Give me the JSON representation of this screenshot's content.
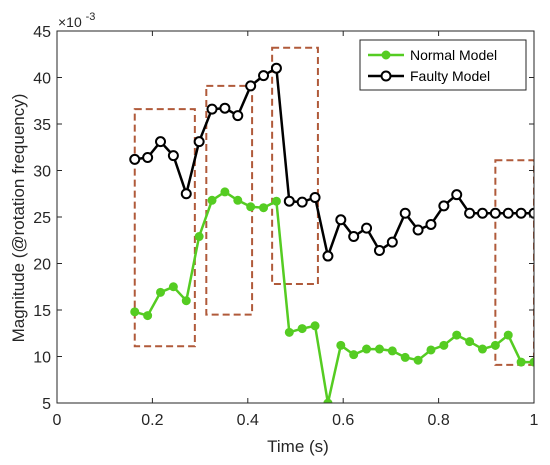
{
  "chart_data": {
    "type": "line",
    "xlabel": "Time (s)",
    "ylabel": "Magnitude (@rotation frequency)",
    "y_exponent": "×10",
    "y_exponent_power": "-3",
    "xlim": [
      0,
      1
    ],
    "ylim": [
      5,
      45
    ],
    "x_ticks": [
      0,
      0.2,
      0.4,
      0.6,
      0.8,
      1
    ],
    "x_tick_labels": [
      "0",
      "0.2",
      "0.4",
      "0.6",
      "0.8",
      "1"
    ],
    "y_ticks": [
      5,
      10,
      15,
      20,
      25,
      30,
      35,
      40,
      45
    ],
    "y_tick_labels": [
      "5",
      "10",
      "15",
      "20",
      "25",
      "30",
      "35",
      "40",
      "45"
    ],
    "grid": false,
    "legend_position": "top-right",
    "series": [
      {
        "name": "Normal Model",
        "color": "#55cc22",
        "marker": "filled-circle",
        "x": [
          0.163,
          0.19,
          0.217,
          0.244,
          0.271,
          0.298,
          0.325,
          0.352,
          0.379,
          0.406,
          0.433,
          0.46,
          0.487,
          0.514,
          0.541,
          0.568,
          0.595,
          0.622,
          0.649,
          0.676,
          0.703,
          0.73,
          0.757,
          0.784,
          0.811,
          0.838,
          0.865,
          0.892,
          0.919,
          0.946,
          0.973,
          1.0
        ],
        "y": [
          14.8,
          14.4,
          16.9,
          17.5,
          16.0,
          22.9,
          26.8,
          27.7,
          26.8,
          26.1,
          26.0,
          26.7,
          12.6,
          13.0,
          13.3,
          5.0,
          11.2,
          10.2,
          10.8,
          10.8,
          10.6,
          9.9,
          9.6,
          10.7,
          11.2,
          12.3,
          11.6,
          10.8,
          11.2,
          12.3,
          9.4,
          9.4
        ]
      },
      {
        "name": "Faulty Model",
        "color": "#000000",
        "marker": "open-circle",
        "x": [
          0.163,
          0.19,
          0.217,
          0.244,
          0.271,
          0.298,
          0.325,
          0.352,
          0.379,
          0.406,
          0.433,
          0.46,
          0.487,
          0.514,
          0.541,
          0.568,
          0.595,
          0.622,
          0.649,
          0.676,
          0.703,
          0.73,
          0.757,
          0.784,
          0.811,
          0.838,
          0.865,
          0.892,
          0.919,
          0.946,
          0.973,
          1.0
        ],
        "y": [
          31.2,
          31.4,
          33.1,
          31.6,
          27.5,
          33.1,
          36.6,
          36.7,
          35.9,
          39.1,
          40.2,
          41.0,
          26.7,
          26.6,
          27.1,
          20.8,
          24.7,
          22.9,
          23.8,
          21.4,
          22.3,
          25.4,
          23.6,
          24.2,
          26.2,
          27.4,
          25.4,
          25.4,
          25.4,
          25.4,
          25.4,
          25.4
        ]
      }
    ],
    "highlight_boxes": [
      {
        "x": [
          0.163,
          0.289
        ],
        "y": [
          11.1,
          36.6
        ],
        "color": "#b05a3a"
      },
      {
        "x": [
          0.313,
          0.409
        ],
        "y": [
          14.5,
          39.1
        ],
        "color": "#b05a3a"
      },
      {
        "x": [
          0.451,
          0.547
        ],
        "y": [
          17.8,
          43.2
        ],
        "color": "#b05a3a"
      },
      {
        "x": [
          0.919,
          1.0
        ],
        "y": [
          9.1,
          31.1
        ],
        "color": "#b05a3a"
      }
    ]
  }
}
